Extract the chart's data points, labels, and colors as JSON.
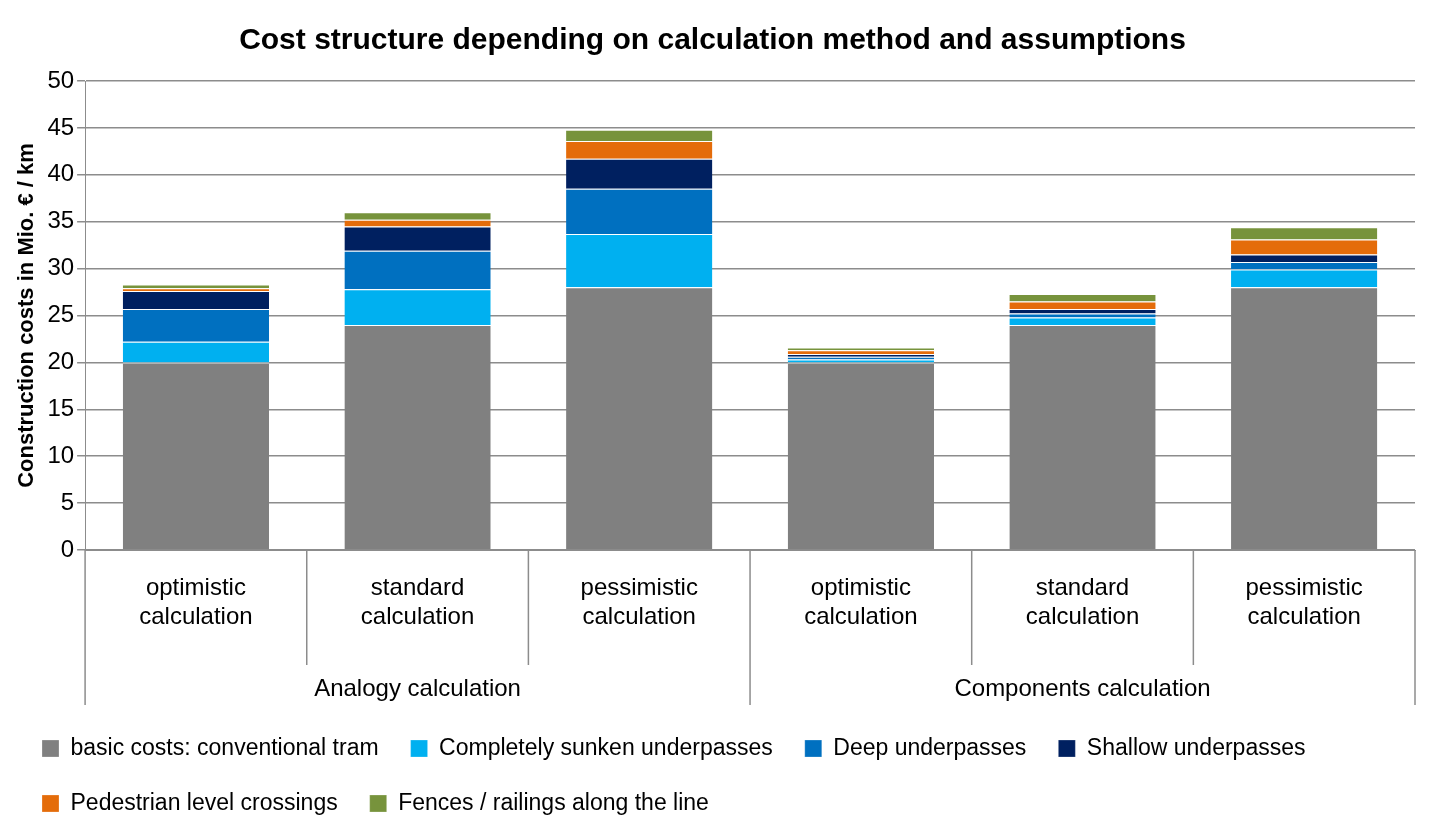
{
  "chart_data": {
    "type": "bar",
    "stacked": true,
    "title": "Cost structure depending on calculation method and assumptions",
    "ylabel": "Construction costs in Mio. € / km",
    "categories": [
      "optimistic calculation",
      "standard calculation",
      "pessimistic calculation",
      "optimistic calculation",
      "standard calculation",
      "pessimistic calculation"
    ],
    "annotations": [
      "Analogy calculation",
      "Components calculation"
    ],
    "series": [
      {
        "name": "basic costs: conventional tram",
        "color": "#808080",
        "values": [
          20,
          24,
          28,
          20,
          24,
          28
        ]
      },
      {
        "name": "Completely sunken underpasses",
        "color": "#00b0f0",
        "values": [
          2.2,
          3.8,
          5.7,
          0.3,
          0.8,
          1.9
        ]
      },
      {
        "name": "Deep underpasses",
        "color": "#0070c0",
        "values": [
          3.5,
          4.1,
          4.8,
          0.3,
          0.4,
          0.8
        ]
      },
      {
        "name": "Shallow underpasses",
        "color": "#002060",
        "values": [
          1.9,
          2.6,
          3.2,
          0.3,
          0.5,
          0.8
        ]
      },
      {
        "name": "Pedestrian level crossings",
        "color": "#e46c0a",
        "values": [
          0.3,
          0.7,
          1.9,
          0.4,
          0.8,
          1.6
        ]
      },
      {
        "name": "Fences / railings along the line",
        "color": "#77933c",
        "values": [
          0.4,
          0.8,
          1.2,
          0.3,
          0.8,
          1.3
        ]
      }
    ],
    "ylim": [
      0,
      50
    ],
    "yticks": [
      0,
      5,
      10,
      15,
      20,
      25,
      30,
      35,
      40,
      45,
      50
    ],
    "grid": "y",
    "legend": "bottom"
  }
}
